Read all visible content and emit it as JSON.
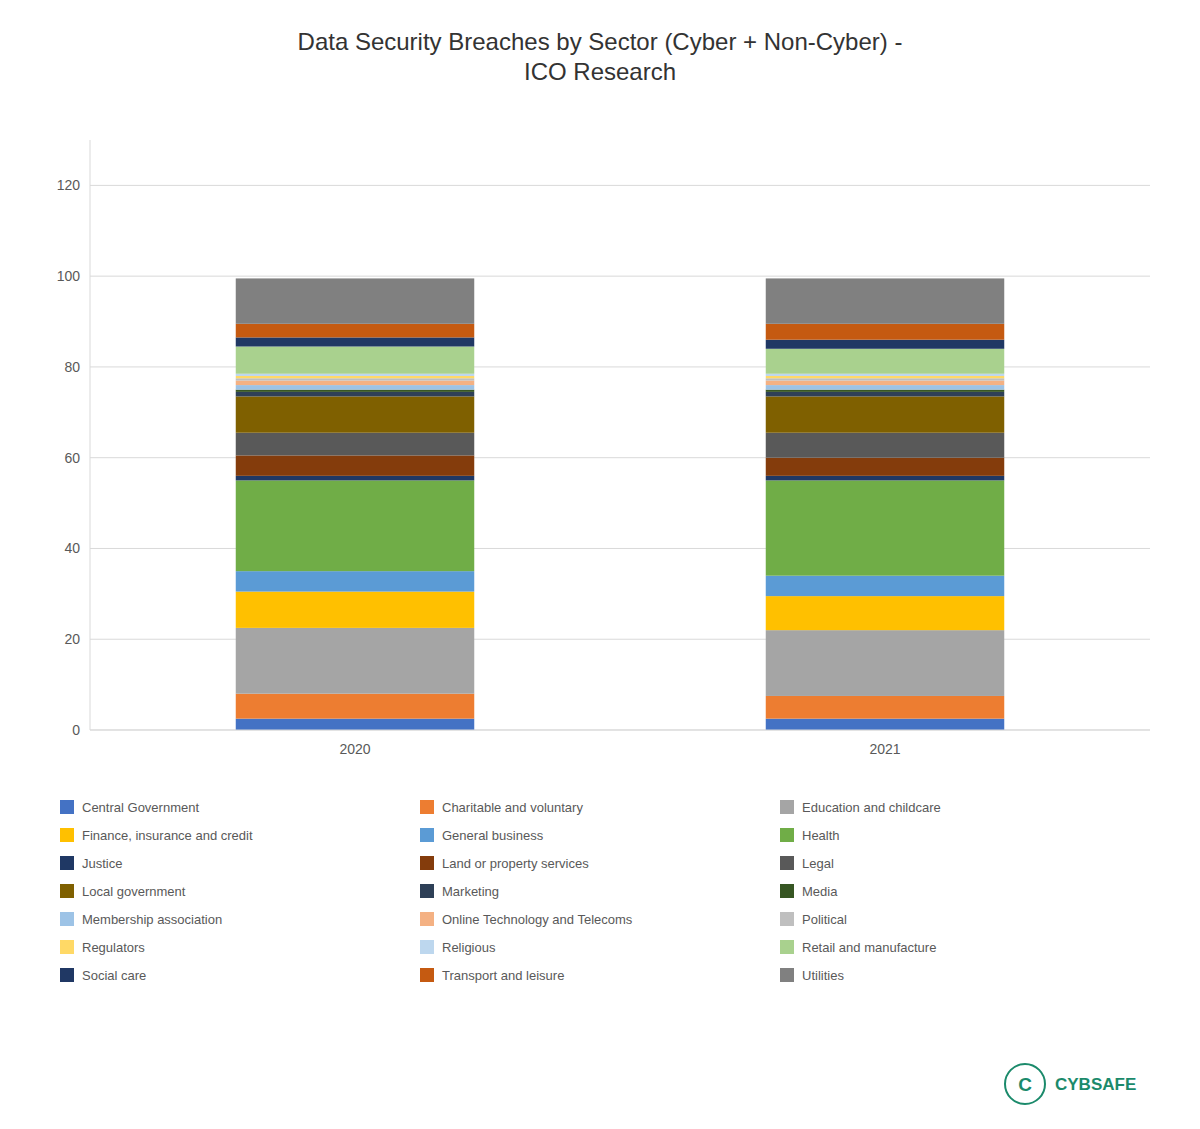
{
  "chart_data": {
    "type": "bar",
    "stacked": true,
    "title": "Data Security Breaches by Sector (Cyber + Non-Cyber) -\nICO Research",
    "categories": [
      "2020",
      "2021"
    ],
    "series": [
      {
        "name": "Central Government",
        "color": "#4472C4",
        "values": [
          2.5,
          2.5
        ]
      },
      {
        "name": "Charitable and voluntary",
        "color": "#ED7D31",
        "values": [
          5.5,
          5.0
        ]
      },
      {
        "name": "Education and childcare",
        "color": "#A5A5A5",
        "values": [
          14.5,
          14.5
        ]
      },
      {
        "name": "Finance, insurance and credit",
        "color": "#FFC000",
        "values": [
          8.0,
          7.5
        ]
      },
      {
        "name": "General business",
        "color": "#5B9BD5",
        "values": [
          4.5,
          4.5
        ]
      },
      {
        "name": "Health",
        "color": "#70AD47",
        "values": [
          20.0,
          21.0
        ]
      },
      {
        "name": "Justice",
        "color": "#1F3864",
        "values": [
          1.0,
          1.0
        ]
      },
      {
        "name": "Land or property services",
        "color": "#843C0C",
        "values": [
          4.5,
          4.0
        ]
      },
      {
        "name": "Legal",
        "color": "#595959",
        "values": [
          5.0,
          5.5
        ]
      },
      {
        "name": "Local government",
        "color": "#7F6000",
        "values": [
          8.0,
          8.0
        ]
      },
      {
        "name": "Marketing",
        "color": "#2E4057",
        "values": [
          1.0,
          1.0
        ]
      },
      {
        "name": "Media",
        "color": "#375623",
        "values": [
          0.5,
          0.5
        ]
      },
      {
        "name": "Membership association",
        "color": "#9DC3E6",
        "values": [
          1.0,
          1.0
        ]
      },
      {
        "name": "Online Technology and Telecoms",
        "color": "#F4B183",
        "values": [
          1.0,
          1.0
        ]
      },
      {
        "name": "Political",
        "color": "#BFBFBF",
        "values": [
          0.5,
          0.5
        ]
      },
      {
        "name": "Regulators",
        "color": "#FFD966",
        "values": [
          0.5,
          0.5
        ]
      },
      {
        "name": "Religious",
        "color": "#BDD7EE",
        "values": [
          0.5,
          0.5
        ]
      },
      {
        "name": "Retail and manufacture",
        "color": "#A9D18E",
        "values": [
          6.0,
          5.5
        ]
      },
      {
        "name": "Social care",
        "color": "#203864",
        "values": [
          2.0,
          2.0
        ]
      },
      {
        "name": "Transport and leisure",
        "color": "#C55A11",
        "values": [
          3.0,
          3.5
        ]
      },
      {
        "name": "Utilities",
        "color": "#808080",
        "values": [
          10.0,
          10.0
        ]
      }
    ],
    "ylim": [
      0,
      130
    ],
    "yticks": [
      0,
      20,
      40,
      60,
      80,
      100,
      120
    ],
    "grid": true,
    "legend": "bottom",
    "annotations": [
      "CYBSAFE",
      "C"
    ]
  }
}
